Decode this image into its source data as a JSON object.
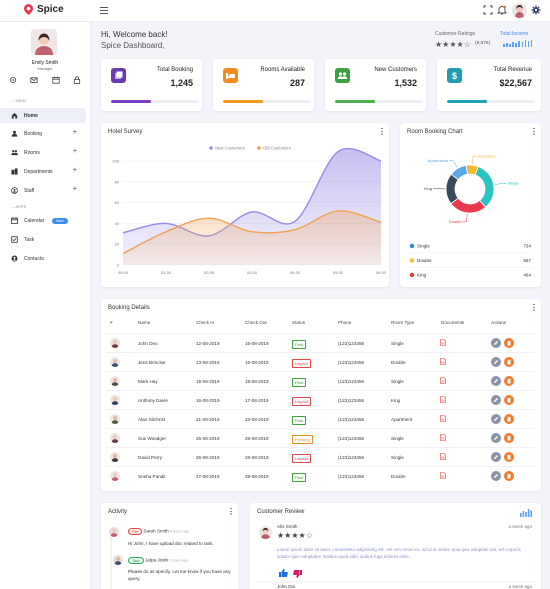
{
  "app": {
    "name": "Spice"
  },
  "profile": {
    "name": "Emily Smith",
    "role": "Manager"
  },
  "sidebar": {
    "main_label": "-- MAIN",
    "apps_label": "-- APPS",
    "items": [
      {
        "label": "Home",
        "icon": "home-icon"
      },
      {
        "label": "Booking",
        "icon": "booking-icon"
      },
      {
        "label": "Rooms",
        "icon": "rooms-icon"
      },
      {
        "label": "Departments",
        "icon": "departments-icon"
      },
      {
        "label": "Staff",
        "icon": "staff-icon"
      },
      {
        "label": "Calendar",
        "icon": "calendar-icon",
        "badge": "New"
      },
      {
        "label": "Task",
        "icon": "task-icon"
      },
      {
        "label": "Contacts",
        "icon": "contacts-icon"
      }
    ]
  },
  "header": {
    "welcome": "Hi, Welcome back!",
    "subtitle": "Spice Dashboard,",
    "ratings_title": "Customer Ratings",
    "ratings_stars": "★★★★☆",
    "ratings_count": "(9,876)",
    "ratings_value": 4.5,
    "income_title": "Total Income"
  },
  "stats": [
    {
      "label": "Total Booking",
      "value": "1,245",
      "color": "#7c3fbf",
      "progress": 0.46
    },
    {
      "label": "Rooms Available",
      "value": "287",
      "color": "#f59a1d",
      "progress": 0.46
    },
    {
      "label": "New Customers",
      "value": "1,532",
      "color": "#4caf50",
      "progress": 0.46
    },
    {
      "label": "Total Revenue",
      "value": "$22,567",
      "color": "#1aa3b5",
      "progress": 0.46
    }
  ],
  "hotel_survey": {
    "title": "Hotel Survey"
  },
  "chart_data": [
    {
      "type": "area",
      "title": "Hotel Survey",
      "x": [
        "00:00",
        "01:30",
        "02:30",
        "03:30",
        "04:30",
        "05:30",
        "06:30"
      ],
      "series": [
        {
          "name": "New Customers",
          "color": "#9a8ae6",
          "values": [
            31,
            40,
            28,
            51,
            42,
            109,
            100
          ]
        },
        {
          "name": "Old Customers",
          "color": "#f0a050",
          "values": [
            11,
            32,
            45,
            32,
            34,
            52,
            41
          ]
        }
      ],
      "yticks": [
        0,
        20,
        40,
        60,
        80,
        100
      ],
      "ylim": [
        0,
        100
      ],
      "grid": true,
      "legend": "top"
    },
    {
      "type": "pie",
      "title": "Room Booking Chart",
      "labels": [
        "Single",
        "Double",
        "King",
        "Apartments",
        "Executive"
      ],
      "values": [
        734,
        567,
        464,
        260,
        180
      ],
      "colors": [
        "#2bc4c4",
        "#e8394f",
        "#3a4a5c",
        "#5aa9e6",
        "#f5b82e"
      ],
      "legend": [
        {
          "label": "Single",
          "value": "734",
          "color": "#1e88e5"
        },
        {
          "label": "Double",
          "value": "567",
          "color": "#fbc02d"
        },
        {
          "label": "King",
          "value": "464",
          "color": "#e53935"
        }
      ]
    }
  ],
  "booking": {
    "title": "Booking Details",
    "columns": [
      "#",
      "Name",
      "Check In",
      "Check Out",
      "Status",
      "Phone",
      "Room Type",
      "Documents",
      "Actions"
    ],
    "rows": [
      {
        "name": "John Deo",
        "in": "12-08-2019",
        "out": "15-08-2019",
        "status": "Paid",
        "phone": "(123)123456",
        "room": "Single"
      },
      {
        "name": "Jens Brincker",
        "in": "13-08-2019",
        "out": "16-08-2019",
        "status": "Unpaid",
        "phone": "(123)123456",
        "room": "Double"
      },
      {
        "name": "Mark Hay",
        "in": "15-08-2019",
        "out": "18-08-2019",
        "status": "Paid",
        "phone": "(123)123456",
        "room": "Single"
      },
      {
        "name": "Anthony Davie",
        "in": "16-08-2019",
        "out": "17-08-2019",
        "status": "Unpaid",
        "phone": "(123)123456",
        "room": "King"
      },
      {
        "name": "Alan Gilchrist",
        "in": "21-08-2019",
        "out": "23-08-2019",
        "status": "Paid",
        "phone": "(123)123456",
        "room": "Apartment"
      },
      {
        "name": "Sue Woodger",
        "in": "25-08-2019",
        "out": "28-08-2019",
        "status": "Pending",
        "phone": "(123)123456",
        "room": "Single"
      },
      {
        "name": "David Perry",
        "in": "26-08-2019",
        "out": "28-08-2019",
        "status": "Unpaid",
        "phone": "(123)123456",
        "room": "Single"
      },
      {
        "name": "Sneha Pandit",
        "in": "27-08-2019",
        "out": "28-08-2019",
        "status": "Paid",
        "phone": "(123)123456",
        "room": "Double"
      }
    ]
  },
  "activity": {
    "title": "Activity",
    "items": [
      {
        "tag": "File",
        "name": "Sarah Smith",
        "time": "6 hours ago",
        "text": "Hi John, I have upload doc related to task."
      },
      {
        "tag": "Task",
        "name": "Jalpa Joshi",
        "time": "5 hours ago",
        "text": "Please do as specify. Let me know if you have any query."
      }
    ]
  },
  "review": {
    "title": "Customer Review",
    "items": [
      {
        "name": "Alis Smith",
        "time": "a week ago",
        "stars": "★★★★☆",
        "text": "Lorem ipsum dolor sit amet, consectetur adipisicing elit. Vel rem rerum ex, ad ut at omnis. Ipsa quis voluptate nat, vel corporis solutor quis voluptates. Natdus quod odio, quibus fuga dolores mitis."
      },
      {
        "name": "John Dio",
        "time": "a week ago"
      }
    ]
  }
}
